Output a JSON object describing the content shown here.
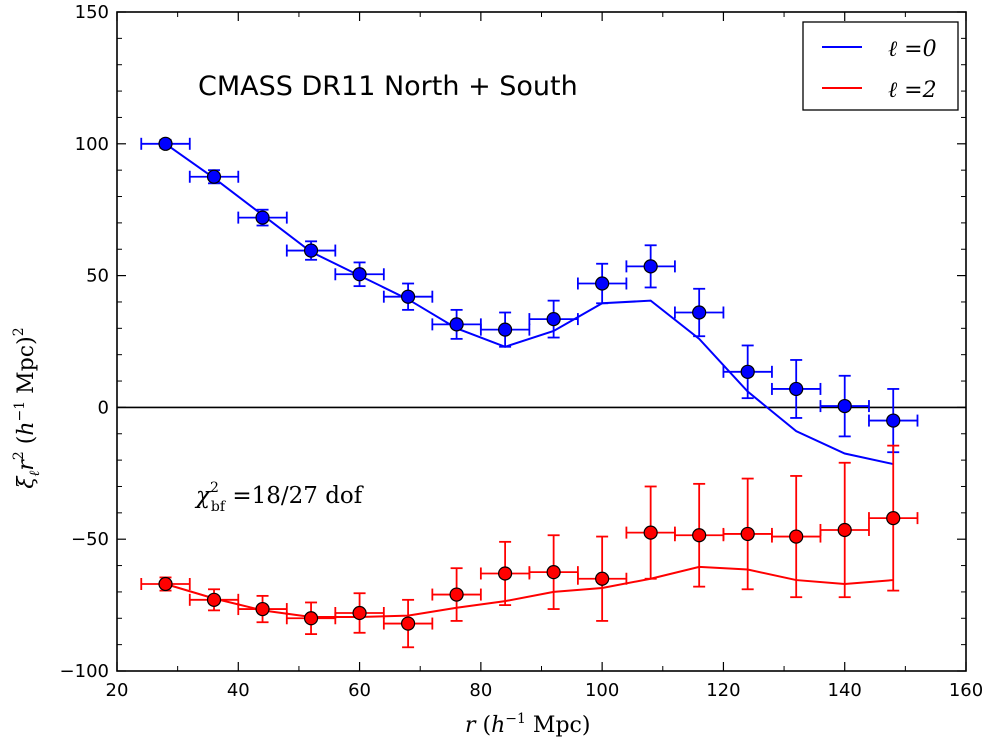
{
  "chart_data": {
    "type": "scatter",
    "title": "",
    "annotation": "CMASS DR11 North + South",
    "annotation_chi2": {
      "symbol": "χ",
      "sup": "2",
      "sub": "bf",
      "text": " =18/27 dof"
    },
    "xlabel": {
      "var": "r",
      "open": " (",
      "h": "h",
      "exp": "−1",
      "rest": " Mpc)"
    },
    "ylabel": {
      "xi": "ξ",
      "sub": "ℓ",
      "r": "r",
      "sup": "2",
      "rest": "  (",
      "h": "h",
      "exp": "−1",
      "unit": " Mpc)",
      "sup2": "2"
    },
    "xlim": [
      20,
      160
    ],
    "ylim": [
      -100,
      150
    ],
    "xticks": [
      20,
      40,
      60,
      80,
      100,
      120,
      140,
      160
    ],
    "yticks": [
      -100,
      -50,
      0,
      50,
      100,
      150
    ],
    "ytick_labels": [
      "−100",
      "−50",
      "0",
      "50",
      "100",
      "150"
    ],
    "zero_line": true,
    "grid": false,
    "legend_position": "top-right",
    "series": [
      {
        "name": "ℓ =0",
        "color": "#0000ff",
        "model_x": [
          28,
          36,
          44,
          52,
          60,
          68,
          76,
          84,
          92,
          100,
          108,
          116,
          124,
          132,
          140,
          148
        ],
        "model_y": [
          100,
          87,
          73,
          59,
          50,
          41,
          30,
          23,
          29,
          39.5,
          40.5,
          26,
          6,
          -9,
          -17.5,
          -21.5
        ],
        "points": {
          "x": [
            28,
            36,
            44,
            52,
            60,
            68,
            76,
            84,
            92,
            100,
            108,
            116,
            124,
            132,
            140,
            148
          ],
          "y": [
            100,
            87.5,
            72,
            59.5,
            50.5,
            42,
            31.5,
            29.5,
            33.5,
            47,
            53.5,
            36,
            13.5,
            7,
            0.5,
            -5
          ],
          "yerr": [
            1.5,
            2.5,
            3,
            3.5,
            4.5,
            5,
            5.5,
            6.5,
            7,
            7.5,
            8,
            9,
            10,
            11,
            11.5,
            12
          ],
          "xerr": 4
        }
      },
      {
        "name": "ℓ =2",
        "color": "#ff0000",
        "model_x": [
          28,
          36,
          44,
          52,
          60,
          68,
          76,
          84,
          92,
          100,
          108,
          116,
          124,
          132,
          140,
          148
        ],
        "model_y": [
          -67,
          -72.5,
          -77,
          -79.5,
          -79.5,
          -79,
          -76,
          -73.5,
          -70,
          -68.5,
          -65,
          -60.5,
          -61.5,
          -65.5,
          -67,
          -65.5
        ],
        "points": {
          "x": [
            28,
            36,
            44,
            52,
            60,
            68,
            76,
            84,
            92,
            100,
            108,
            116,
            124,
            132,
            140,
            148
          ],
          "y": [
            -67,
            -73,
            -76.5,
            -80,
            -78,
            -82,
            -71,
            -63,
            -62.5,
            -65,
            -47.5,
            -48.5,
            -48,
            -49,
            -46.5,
            -42
          ],
          "yerr": [
            2.5,
            4,
            5,
            6,
            7.5,
            9,
            10,
            12,
            14,
            16,
            17.5,
            19.5,
            21,
            23,
            25.5,
            27.5
          ],
          "xerr": 4
        }
      }
    ]
  }
}
